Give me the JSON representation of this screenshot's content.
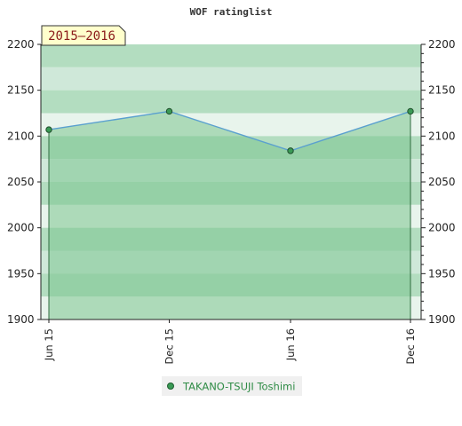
{
  "chart_data": {
    "type": "line",
    "title": "WOF ratinglist",
    "season_label": "2015–2016",
    "xlabel": "",
    "ylabel": "",
    "ylim": [
      1900,
      2200
    ],
    "y_ticks": [
      1900,
      1950,
      2000,
      2050,
      2100,
      2150,
      2200
    ],
    "x_ticks": [
      "Jun 15",
      "Dec 15",
      "Jun 16",
      "Dec 16"
    ],
    "series": [
      {
        "name": "TAKANO-TSUJI Toshimi",
        "color": "#5aa0cf",
        "marker_color": "#3a9a55",
        "points": [
          {
            "x": "Jun 15",
            "y": 2107
          },
          {
            "x": "Dec 15",
            "y": 2127
          },
          {
            "x": "Jun 16",
            "y": 2084
          },
          {
            "x": "Dec 16",
            "y": 2127
          }
        ]
      }
    ],
    "fill_color": "#7cc58f",
    "grid": true,
    "legend_position": "bottom-center",
    "dual_y_axis": true
  }
}
